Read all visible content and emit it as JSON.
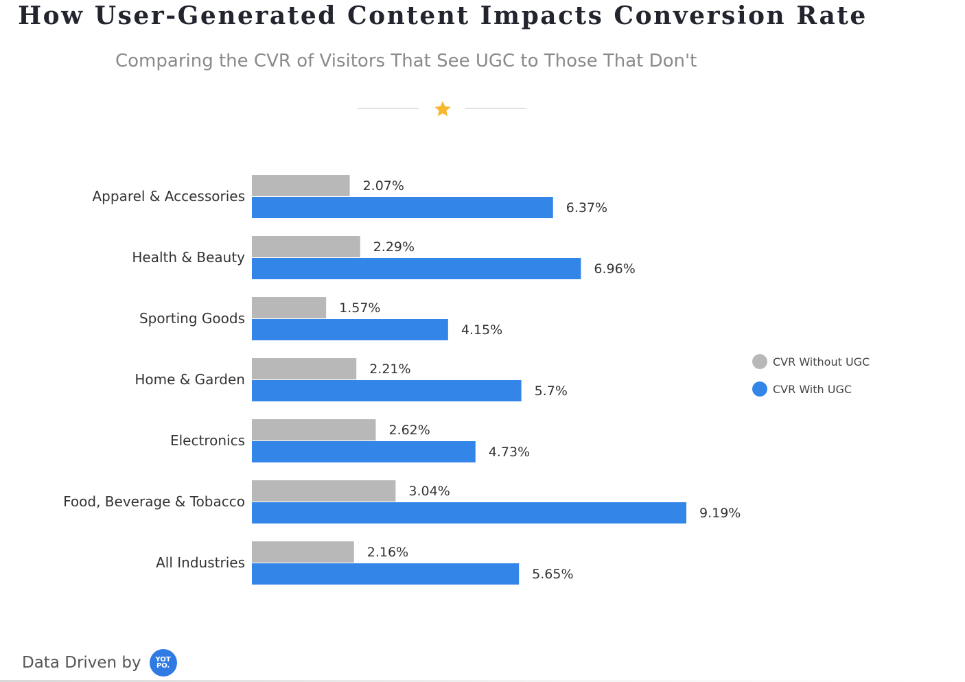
{
  "header": {
    "title": "How User-Generated Content Impacts Conversion Rate",
    "subtitle": "Comparing the CVR of Visitors That See UGC to Those That Don't"
  },
  "ornament": {
    "icon": "star-icon",
    "color": "#f5b82e"
  },
  "chart_data": {
    "type": "bar",
    "orientation": "horizontal",
    "categories": [
      "Apparel & Accessories",
      "Health & Beauty",
      "Sporting Goods",
      "Home & Garden",
      "Electronics",
      "Food, Beverage & Tobacco",
      "All Industries"
    ],
    "series": [
      {
        "name": "CVR Without UGC",
        "color": "#b8b8b8",
        "values": [
          2.07,
          2.29,
          1.57,
          2.21,
          2.62,
          3.04,
          2.16
        ],
        "labels": [
          "2.07%",
          "2.29%",
          "1.57%",
          "2.21%",
          "2.62%",
          "3.04%",
          "2.16%"
        ]
      },
      {
        "name": "CVR With UGC",
        "color": "#3385e8",
        "values": [
          6.37,
          6.96,
          4.15,
          5.7,
          4.73,
          9.19,
          5.65
        ],
        "labels": [
          "6.37%",
          "6.96%",
          "4.15%",
          "5.7%",
          "4.73%",
          "9.19%",
          "5.65%"
        ]
      }
    ],
    "title": "How User-Generated Content Impacts Conversion Rate",
    "subtitle": "Comparing the CVR of Visitors That See UGC to Those That Don't",
    "xlabel": "",
    "ylabel": "",
    "xlim": [
      0,
      9.19
    ],
    "grid": false,
    "legend_position": "right"
  },
  "legend": {
    "items": [
      {
        "label": "CVR Without UGC",
        "color": "#b8b8b8"
      },
      {
        "label": "CVR With UGC",
        "color": "#3385e8"
      }
    ]
  },
  "footer": {
    "text": "Data Driven by",
    "logo_line1": "YOT",
    "logo_line2": "PO."
  }
}
